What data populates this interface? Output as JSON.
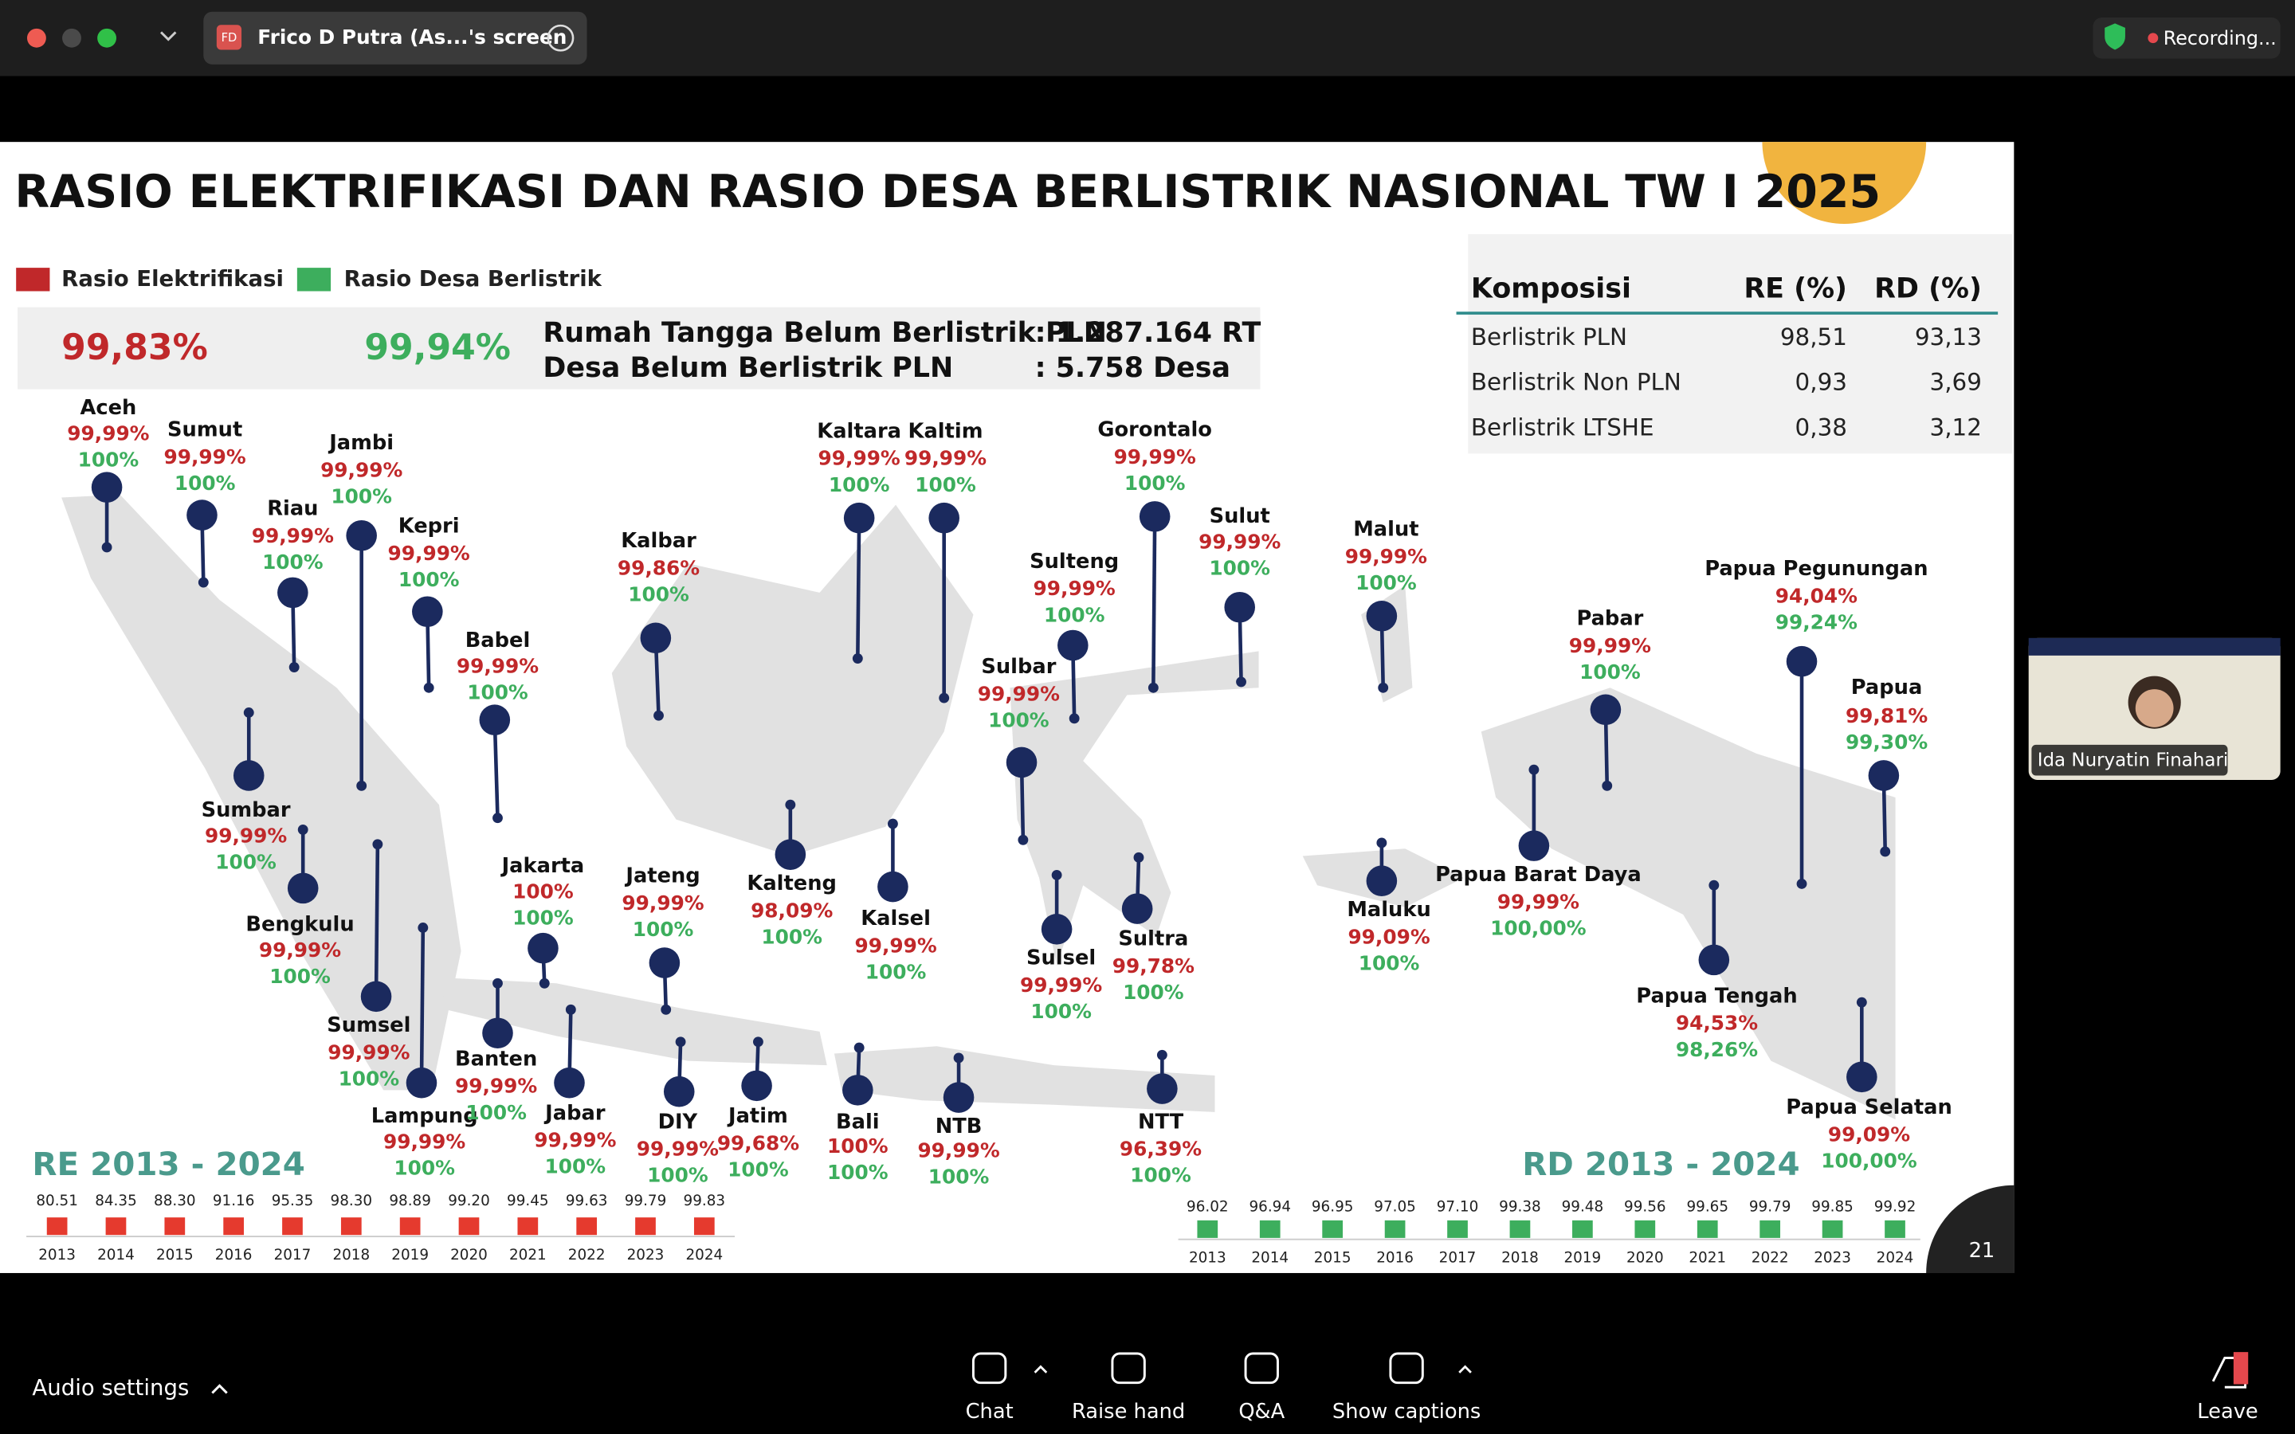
{
  "window": {
    "tab_initials": "FD",
    "tab_title": "Frico D Putra (As...'s screen",
    "recording": "Recording..."
  },
  "slide": {
    "title": "RASIO ELEKTRIFIKASI DAN RASIO DESA BERLISTRIK NASIONAL TW I 2025",
    "legend": [
      "Rasio Elektrifikasi",
      "Rasio Desa Berlistrik"
    ],
    "summary": {
      "re": "99,83%",
      "rd": "99,94%",
      "lines": [
        [
          "Rumah Tangga Belum Berlistrik PLN",
          ": 1.287.164 RT"
        ],
        [
          "Desa Belum Berlistrik PLN",
          ": 5.758 Desa"
        ]
      ]
    },
    "table": {
      "header": [
        "Komposisi",
        "RE (%)",
        "RD (%)"
      ],
      "rows": [
        [
          "Berlistrik PLN",
          "98,51",
          "93,13"
        ],
        [
          "Berlistrik Non PLN",
          "0,93",
          "3,69"
        ],
        [
          "Berlistrik LTSHE",
          "0,38",
          "3,12"
        ]
      ]
    },
    "provinces": [
      {
        "name": "Aceh",
        "re": "99,99%",
        "rd": "100%"
      },
      {
        "name": "Sumut",
        "re": "99,99%",
        "rd": "100%"
      },
      {
        "name": "Riau",
        "re": "99,99%",
        "rd": "100%"
      },
      {
        "name": "Jambi",
        "re": "99,99%",
        "rd": "100%"
      },
      {
        "name": "Kepri",
        "re": "99,99%",
        "rd": "100%"
      },
      {
        "name": "Babel",
        "re": "99,99%",
        "rd": "100%"
      },
      {
        "name": "Sumbar",
        "re": "99,99%",
        "rd": "100%"
      },
      {
        "name": "Bengkulu",
        "re": "99,99%",
        "rd": "100%"
      },
      {
        "name": "Sumsel",
        "re": "99,99%",
        "rd": "100%"
      },
      {
        "name": "Lampung",
        "re": "99,99%",
        "rd": "100%"
      },
      {
        "name": "Jakarta",
        "re": "100%",
        "rd": "100%"
      },
      {
        "name": "Banten",
        "re": "99,99%",
        "rd": "100%"
      },
      {
        "name": "Jabar",
        "re": "99,99%",
        "rd": "100%"
      },
      {
        "name": "Jateng",
        "re": "99,99%",
        "rd": "100%"
      },
      {
        "name": "DIY",
        "re": "99,99%",
        "rd": "100%"
      },
      {
        "name": "Jatim",
        "re": "99,68%",
        "rd": "100%"
      },
      {
        "name": "Kalbar",
        "re": "99,86%",
        "rd": "100%"
      },
      {
        "name": "Kalteng",
        "re": "98,09%",
        "rd": "100%"
      },
      {
        "name": "Kalsel",
        "re": "99,99%",
        "rd": "100%"
      },
      {
        "name": "Bali",
        "re": "100%",
        "rd": "100%"
      },
      {
        "name": "NTB",
        "re": "99,99%",
        "rd": "100%"
      },
      {
        "name": "Kaltara",
        "re": "99,99%",
        "rd": "100%"
      },
      {
        "name": "Kaltim",
        "re": "99,99%",
        "rd": "100%"
      },
      {
        "name": "Sulteng",
        "re": "99,99%",
        "rd": "100%"
      },
      {
        "name": "Sulbar",
        "re": "99,99%",
        "rd": "100%"
      },
      {
        "name": "Gorontalo",
        "re": "99,99%",
        "rd": "100%"
      },
      {
        "name": "Sulut",
        "re": "99,99%",
        "rd": "100%"
      },
      {
        "name": "Sulsel",
        "re": "99,99%",
        "rd": "100%"
      },
      {
        "name": "Sultra",
        "re": "99,78%",
        "rd": "100%"
      },
      {
        "name": "NTT",
        "re": "96,39%",
        "rd": "100%"
      },
      {
        "name": "Malut",
        "re": "99,99%",
        "rd": "100%"
      },
      {
        "name": "Maluku",
        "re": "99,09%",
        "rd": "100%"
      },
      {
        "name": "Pabar",
        "re": "99,99%",
        "rd": "100%"
      },
      {
        "name": "Papua Barat Daya",
        "re": "99,99%",
        "rd": "100,00%"
      },
      {
        "name": "Papua Pegunungan",
        "re": "94,04%",
        "rd": "99,24%"
      },
      {
        "name": "Papua",
        "re": "99,81%",
        "rd": "99,30%"
      },
      {
        "name": "Papua Tengah",
        "re": "94,53%",
        "rd": "98,26%"
      },
      {
        "name": "Papua Selatan",
        "re": "99,09%",
        "rd": "100,00%"
      }
    ],
    "re_history": {
      "title": "RE 2013 - 2024",
      "years": [
        "2013",
        "2014",
        "2015",
        "2016",
        "2017",
        "2018",
        "2019",
        "2020",
        "2021",
        "2022",
        "2023",
        "2024"
      ],
      "values": [
        "80.51",
        "84.35",
        "88.30",
        "91.16",
        "95.35",
        "98.30",
        "98.89",
        "99.20",
        "99.45",
        "99.63",
        "99.79",
        "99.83"
      ]
    },
    "rd_history": {
      "title": "RD 2013 - 2024",
      "years": [
        "2013",
        "2014",
        "2015",
        "2016",
        "2017",
        "2018",
        "2019",
        "2020",
        "2021",
        "2022",
        "2023",
        "2024"
      ],
      "values": [
        "96.02",
        "96.94",
        "96.95",
        "97.05",
        "97.10",
        "99.38",
        "99.48",
        "99.56",
        "99.65",
        "99.79",
        "99.85",
        "99.92"
      ]
    },
    "page": "21"
  },
  "participant": "Ida Nuryatin Finahari",
  "toolbar": {
    "audio": "Audio settings",
    "buttons": [
      "Chat",
      "Raise hand",
      "Q&A",
      "Show captions"
    ],
    "leave": "Leave"
  }
}
